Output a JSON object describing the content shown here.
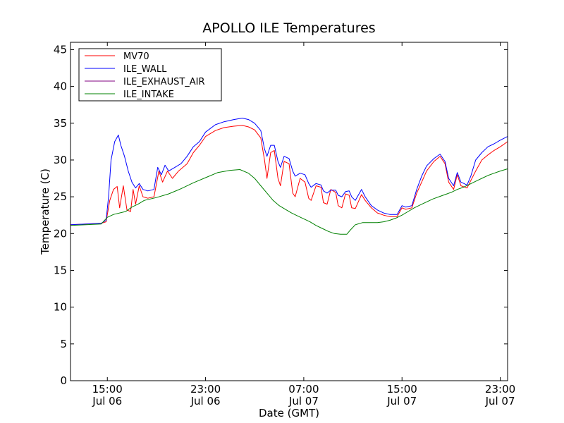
{
  "chart_data": {
    "type": "line",
    "title": "APOLLO ILE Temperatures",
    "xlabel": "Date (GMT)",
    "ylabel": "Temperature (C)",
    "x_unit": "hours since Jul 06 12:00 GMT",
    "xlim": [
      0,
      35.6
    ],
    "ylim": [
      0,
      46
    ],
    "yticks": [
      0,
      5,
      10,
      15,
      20,
      25,
      30,
      35,
      40,
      45
    ],
    "xticks": [
      {
        "x": 3,
        "line1": "15:00",
        "line2": "Jul 06"
      },
      {
        "x": 11,
        "line1": "23:00",
        "line2": "Jul 06"
      },
      {
        "x": 19,
        "line1": "07:00",
        "line2": "Jul 07"
      },
      {
        "x": 27,
        "line1": "15:00",
        "line2": "Jul 07"
      },
      {
        "x": 35,
        "line1": "23:00",
        "line2": "Jul 07"
      }
    ],
    "legend_position": "top-left",
    "series": [
      {
        "name": "MV70",
        "color": "#ff0000",
        "points": [
          [
            0,
            21.2
          ],
          [
            2.5,
            21.4
          ],
          [
            2.9,
            21.6
          ],
          [
            3.2,
            24.5
          ],
          [
            3.5,
            26.0
          ],
          [
            3.8,
            26.4
          ],
          [
            4.0,
            23.5
          ],
          [
            4.3,
            26.5
          ],
          [
            4.6,
            23.2
          ],
          [
            4.9,
            23.0
          ],
          [
            5.1,
            26.0
          ],
          [
            5.3,
            24.0
          ],
          [
            5.6,
            26.5
          ],
          [
            5.9,
            25.0
          ],
          [
            6.3,
            24.8
          ],
          [
            6.8,
            25.0
          ],
          [
            7.2,
            28.5
          ],
          [
            7.5,
            27.0
          ],
          [
            7.9,
            28.5
          ],
          [
            8.3,
            27.5
          ],
          [
            8.8,
            28.5
          ],
          [
            9.5,
            29.5
          ],
          [
            10.0,
            31.0
          ],
          [
            10.5,
            32.0
          ],
          [
            11.0,
            33.2
          ],
          [
            11.8,
            34.0
          ],
          [
            12.5,
            34.4
          ],
          [
            13.3,
            34.6
          ],
          [
            14.0,
            34.7
          ],
          [
            14.5,
            34.5
          ],
          [
            15.0,
            34.1
          ],
          [
            15.5,
            33.0
          ],
          [
            15.8,
            30.0
          ],
          [
            16.0,
            27.5
          ],
          [
            16.3,
            31.0
          ],
          [
            16.6,
            31.3
          ],
          [
            16.9,
            27.5
          ],
          [
            17.1,
            26.5
          ],
          [
            17.4,
            29.8
          ],
          [
            17.8,
            29.5
          ],
          [
            18.1,
            25.5
          ],
          [
            18.3,
            25.0
          ],
          [
            18.7,
            27.5
          ],
          [
            19.1,
            27.0
          ],
          [
            19.4,
            24.8
          ],
          [
            19.6,
            24.5
          ],
          [
            20.0,
            26.5
          ],
          [
            20.4,
            26.3
          ],
          [
            20.6,
            24.2
          ],
          [
            20.9,
            24.0
          ],
          [
            21.2,
            26.0
          ],
          [
            21.6,
            25.6
          ],
          [
            21.8,
            23.8
          ],
          [
            22.1,
            23.5
          ],
          [
            22.4,
            25.4
          ],
          [
            22.7,
            25.2
          ],
          [
            22.9,
            23.5
          ],
          [
            23.2,
            23.4
          ],
          [
            23.7,
            25.3
          ],
          [
            24.0,
            24.5
          ],
          [
            24.5,
            23.5
          ],
          [
            25.0,
            22.8
          ],
          [
            25.5,
            22.5
          ],
          [
            26.0,
            22.3
          ],
          [
            26.6,
            22.3
          ],
          [
            27.0,
            23.5
          ],
          [
            27.3,
            23.3
          ],
          [
            27.8,
            23.5
          ],
          [
            28.2,
            25.5
          ],
          [
            28.6,
            27.0
          ],
          [
            29.0,
            28.5
          ],
          [
            29.6,
            29.8
          ],
          [
            30.1,
            30.5
          ],
          [
            30.5,
            29.5
          ],
          [
            30.8,
            27.0
          ],
          [
            31.2,
            26.0
          ],
          [
            31.5,
            28.0
          ],
          [
            31.8,
            26.5
          ],
          [
            32.3,
            26.2
          ],
          [
            32.6,
            27.2
          ],
          [
            33.0,
            28.5
          ],
          [
            33.5,
            30.0
          ],
          [
            34.0,
            30.7
          ],
          [
            34.5,
            31.3
          ],
          [
            35.0,
            31.8
          ],
          [
            35.6,
            32.5
          ]
        ]
      },
      {
        "name": "ILE_WALL",
        "color": "#0000ff",
        "points": [
          [
            0,
            21.2
          ],
          [
            2.5,
            21.4
          ],
          [
            2.9,
            21.8
          ],
          [
            3.1,
            25.0
          ],
          [
            3.3,
            30.0
          ],
          [
            3.6,
            32.5
          ],
          [
            3.9,
            33.4
          ],
          [
            4.1,
            32.0
          ],
          [
            4.4,
            30.5
          ],
          [
            4.7,
            28.5
          ],
          [
            5.0,
            27.0
          ],
          [
            5.3,
            26.2
          ],
          [
            5.6,
            26.8
          ],
          [
            5.9,
            26.0
          ],
          [
            6.3,
            25.8
          ],
          [
            6.8,
            26.0
          ],
          [
            7.1,
            29.0
          ],
          [
            7.4,
            28.0
          ],
          [
            7.7,
            29.3
          ],
          [
            8.0,
            28.5
          ],
          [
            8.5,
            29.0
          ],
          [
            9.0,
            29.5
          ],
          [
            9.5,
            30.5
          ],
          [
            10.0,
            31.8
          ],
          [
            10.5,
            32.5
          ],
          [
            11.0,
            33.8
          ],
          [
            11.8,
            34.8
          ],
          [
            12.5,
            35.2
          ],
          [
            13.3,
            35.5
          ],
          [
            14.0,
            35.7
          ],
          [
            14.5,
            35.5
          ],
          [
            15.0,
            35.0
          ],
          [
            15.5,
            34.0
          ],
          [
            15.8,
            31.5
          ],
          [
            16.0,
            30.5
          ],
          [
            16.3,
            32.0
          ],
          [
            16.6,
            32.0
          ],
          [
            16.9,
            29.8
          ],
          [
            17.1,
            29.0
          ],
          [
            17.4,
            30.5
          ],
          [
            17.8,
            30.2
          ],
          [
            18.1,
            28.5
          ],
          [
            18.3,
            27.8
          ],
          [
            18.7,
            28.2
          ],
          [
            19.1,
            28.0
          ],
          [
            19.4,
            26.8
          ],
          [
            19.6,
            26.3
          ],
          [
            20.0,
            26.8
          ],
          [
            20.4,
            26.6
          ],
          [
            20.6,
            25.8
          ],
          [
            20.9,
            25.5
          ],
          [
            21.2,
            25.9
          ],
          [
            21.6,
            25.9
          ],
          [
            21.8,
            25.2
          ],
          [
            22.1,
            25.0
          ],
          [
            22.4,
            25.7
          ],
          [
            22.7,
            25.8
          ],
          [
            22.9,
            25.0
          ],
          [
            23.2,
            24.5
          ],
          [
            23.7,
            26.0
          ],
          [
            24.0,
            25.0
          ],
          [
            24.5,
            23.8
          ],
          [
            25.0,
            23.2
          ],
          [
            25.5,
            22.8
          ],
          [
            26.0,
            22.6
          ],
          [
            26.6,
            22.6
          ],
          [
            27.0,
            23.8
          ],
          [
            27.3,
            23.6
          ],
          [
            27.8,
            23.8
          ],
          [
            28.2,
            26.0
          ],
          [
            28.6,
            27.8
          ],
          [
            29.0,
            29.2
          ],
          [
            29.6,
            30.2
          ],
          [
            30.1,
            30.8
          ],
          [
            30.5,
            29.8
          ],
          [
            30.8,
            27.5
          ],
          [
            31.2,
            26.5
          ],
          [
            31.5,
            28.3
          ],
          [
            31.8,
            27.0
          ],
          [
            32.3,
            26.6
          ],
          [
            32.6,
            27.8
          ],
          [
            33.0,
            30.0
          ],
          [
            33.5,
            31.0
          ],
          [
            34.0,
            31.8
          ],
          [
            34.5,
            32.2
          ],
          [
            35.0,
            32.7
          ],
          [
            35.6,
            33.2
          ]
        ]
      },
      {
        "name": "ILE_EXHAUST_AIR",
        "color": "#800080",
        "points": []
      },
      {
        "name": "ILE_INTAKE",
        "color": "#008000",
        "points": [
          [
            0,
            21.1
          ],
          [
            2.5,
            21.3
          ],
          [
            3.0,
            22.2
          ],
          [
            3.5,
            22.6
          ],
          [
            4.5,
            23.0
          ],
          [
            5.0,
            23.6
          ],
          [
            5.5,
            24.0
          ],
          [
            6.0,
            24.5
          ],
          [
            7.0,
            24.9
          ],
          [
            8.0,
            25.4
          ],
          [
            9.0,
            26.1
          ],
          [
            10.0,
            26.9
          ],
          [
            11.0,
            27.6
          ],
          [
            12.0,
            28.3
          ],
          [
            13.0,
            28.6
          ],
          [
            13.8,
            28.7
          ],
          [
            14.5,
            28.2
          ],
          [
            15.0,
            27.5
          ],
          [
            15.5,
            26.5
          ],
          [
            16.0,
            25.5
          ],
          [
            16.5,
            24.5
          ],
          [
            17.0,
            23.8
          ],
          [
            17.5,
            23.3
          ],
          [
            18.0,
            22.8
          ],
          [
            18.5,
            22.4
          ],
          [
            19.0,
            22.0
          ],
          [
            19.5,
            21.6
          ],
          [
            20.0,
            21.1
          ],
          [
            20.5,
            20.7
          ],
          [
            21.0,
            20.3
          ],
          [
            21.5,
            20.0
          ],
          [
            22.0,
            19.9
          ],
          [
            22.5,
            19.9
          ],
          [
            22.8,
            20.5
          ],
          [
            23.2,
            21.2
          ],
          [
            23.8,
            21.5
          ],
          [
            24.5,
            21.5
          ],
          [
            25.0,
            21.5
          ],
          [
            25.5,
            21.6
          ],
          [
            26.0,
            21.8
          ],
          [
            26.5,
            22.1
          ],
          [
            27.0,
            22.5
          ],
          [
            27.5,
            23.0
          ],
          [
            28.0,
            23.5
          ],
          [
            28.5,
            23.9
          ],
          [
            29.0,
            24.3
          ],
          [
            29.5,
            24.7
          ],
          [
            30.0,
            25.0
          ],
          [
            30.5,
            25.3
          ],
          [
            31.0,
            25.6
          ],
          [
            31.5,
            26.0
          ],
          [
            32.0,
            26.3
          ],
          [
            32.5,
            26.7
          ],
          [
            33.0,
            27.1
          ],
          [
            33.5,
            27.5
          ],
          [
            34.0,
            27.9
          ],
          [
            34.5,
            28.2
          ],
          [
            35.0,
            28.5
          ],
          [
            35.6,
            28.8
          ]
        ]
      }
    ]
  }
}
